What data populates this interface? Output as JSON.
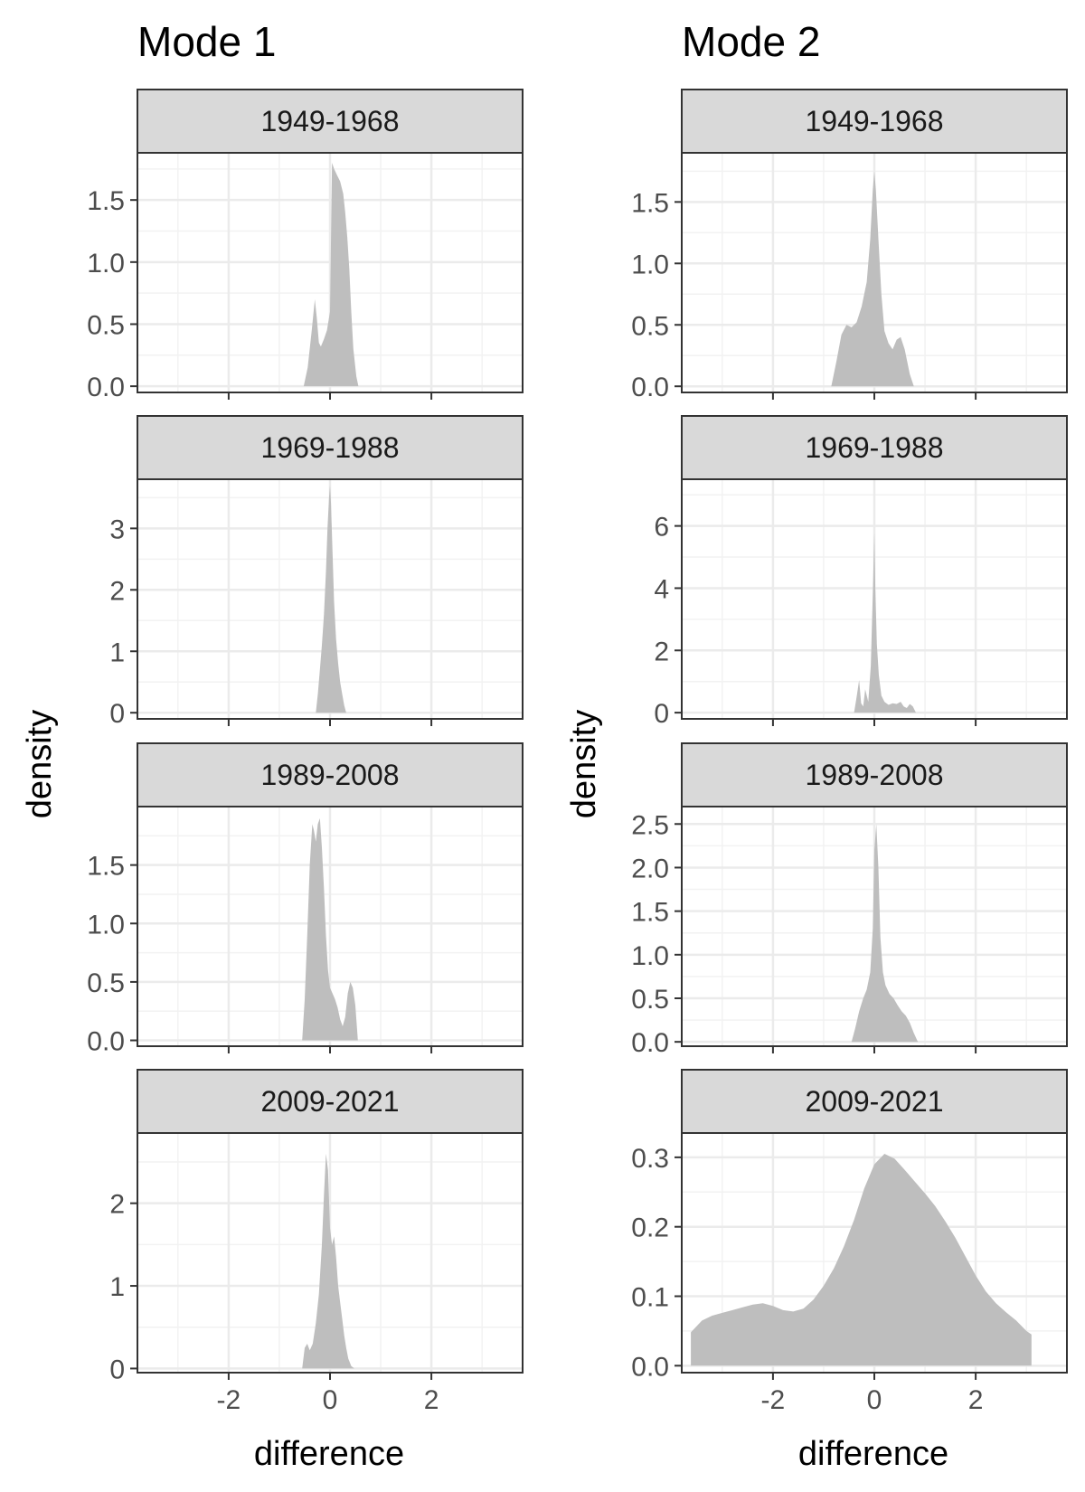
{
  "chart_data": [
    {
      "type": "area",
      "title": "Mode 1",
      "xlabel": "difference",
      "ylabel": "density",
      "xlim": [
        -3.8,
        3.8
      ],
      "xticks": [
        -2,
        0,
        2
      ],
      "xtick_labels": [
        "-2",
        "0",
        "2"
      ],
      "grid": true,
      "fill_color": "#bebebe",
      "panels": [
        {
          "label": "1949-1968",
          "ylim": [
            -0.05,
            1.88
          ],
          "yticks": [
            0,
            0.5,
            1,
            1.5
          ],
          "ytick_labels": [
            "0.0",
            "0.5",
            "1.0",
            "1.5"
          ],
          "x": [
            -0.52,
            -0.44,
            -0.36,
            -0.3,
            -0.26,
            -0.22,
            -0.18,
            -0.12,
            -0.06,
            0.0,
            0.04,
            0.08,
            0.14,
            0.2,
            0.26,
            0.3,
            0.34,
            0.38,
            0.42,
            0.46,
            0.52,
            0.56
          ],
          "y": [
            0.0,
            0.15,
            0.45,
            0.7,
            0.55,
            0.35,
            0.32,
            0.38,
            0.45,
            0.6,
            1.8,
            1.75,
            1.7,
            1.65,
            1.55,
            1.4,
            1.2,
            0.95,
            0.6,
            0.3,
            0.08,
            0.0
          ]
        },
        {
          "label": "1969-1988",
          "ylim": [
            -0.1,
            3.8
          ],
          "yticks": [
            0,
            1,
            2,
            3
          ],
          "ytick_labels": [
            "0",
            "1",
            "2",
            "3"
          ],
          "x": [
            -0.28,
            -0.24,
            -0.2,
            -0.16,
            -0.12,
            -0.08,
            -0.05,
            -0.02,
            0.0,
            0.02,
            0.05,
            0.08,
            0.12,
            0.16,
            0.2,
            0.24,
            0.28,
            0.32
          ],
          "y": [
            0.0,
            0.3,
            0.7,
            1.1,
            1.6,
            2.3,
            3.0,
            3.5,
            3.7,
            3.4,
            2.6,
            1.8,
            1.2,
            0.8,
            0.5,
            0.3,
            0.12,
            0.0
          ]
        },
        {
          "label": "1989-2008",
          "ylim": [
            -0.05,
            2.0
          ],
          "yticks": [
            0,
            0.5,
            1,
            1.5
          ],
          "ytick_labels": [
            "0.0",
            "0.5",
            "1.0",
            "1.5"
          ],
          "x": [
            -0.55,
            -0.5,
            -0.45,
            -0.4,
            -0.35,
            -0.32,
            -0.28,
            -0.24,
            -0.2,
            -0.16,
            -0.12,
            -0.08,
            -0.04,
            0.0,
            0.05,
            0.1,
            0.15,
            0.2,
            0.25,
            0.3,
            0.35,
            0.4,
            0.45,
            0.5,
            0.55
          ],
          "y": [
            0.0,
            0.35,
            0.9,
            1.5,
            1.85,
            1.8,
            1.7,
            1.85,
            1.9,
            1.65,
            1.3,
            0.9,
            0.6,
            0.45,
            0.4,
            0.35,
            0.28,
            0.18,
            0.12,
            0.2,
            0.4,
            0.5,
            0.45,
            0.3,
            0.0
          ]
        },
        {
          "label": "2009-2021",
          "ylim": [
            -0.05,
            2.85
          ],
          "yticks": [
            0,
            1,
            2
          ],
          "ytick_labels": [
            "0",
            "1",
            "2"
          ],
          "x": [
            -0.55,
            -0.5,
            -0.45,
            -0.4,
            -0.34,
            -0.28,
            -0.22,
            -0.16,
            -0.12,
            -0.08,
            -0.04,
            0.0,
            0.04,
            0.08,
            0.12,
            0.16,
            0.2,
            0.24,
            0.28,
            0.32,
            0.36,
            0.42,
            0.48
          ],
          "y": [
            0.0,
            0.25,
            0.3,
            0.22,
            0.3,
            0.55,
            0.9,
            1.5,
            2.1,
            2.6,
            2.4,
            1.7,
            1.5,
            1.6,
            1.35,
            1.0,
            0.8,
            0.6,
            0.4,
            0.25,
            0.12,
            0.03,
            0.0
          ]
        }
      ]
    },
    {
      "type": "area",
      "title": "Mode 2",
      "xlabel": "difference",
      "ylabel": "density",
      "xlim": [
        -3.8,
        3.8
      ],
      "xticks": [
        -2,
        0,
        2
      ],
      "xtick_labels": [
        "-2",
        "0",
        "2"
      ],
      "grid": true,
      "fill_color": "#bebebe",
      "panels": [
        {
          "label": "1949-1968",
          "ylim": [
            -0.05,
            1.9
          ],
          "yticks": [
            0,
            0.5,
            1,
            1.5
          ],
          "ytick_labels": [
            "0.0",
            "0.5",
            "1.0",
            "1.5"
          ],
          "x": [
            -0.85,
            -0.75,
            -0.65,
            -0.55,
            -0.45,
            -0.35,
            -0.25,
            -0.15,
            -0.08,
            -0.03,
            0.0,
            0.03,
            0.08,
            0.14,
            0.2,
            0.28,
            0.36,
            0.44,
            0.52,
            0.6,
            0.7,
            0.78
          ],
          "y": [
            0.0,
            0.2,
            0.42,
            0.5,
            0.48,
            0.52,
            0.65,
            0.85,
            1.2,
            1.6,
            1.75,
            1.6,
            1.2,
            0.75,
            0.45,
            0.35,
            0.3,
            0.38,
            0.4,
            0.3,
            0.1,
            0.0
          ]
        },
        {
          "label": "1969-1988",
          "ylim": [
            -0.2,
            7.5
          ],
          "yticks": [
            0,
            2,
            4,
            6
          ],
          "ytick_labels": [
            "0",
            "2",
            "4",
            "6"
          ],
          "x": [
            -0.4,
            -0.35,
            -0.3,
            -0.26,
            -0.22,
            -0.18,
            -0.12,
            -0.07,
            -0.03,
            0.0,
            0.02,
            0.05,
            0.09,
            0.14,
            0.2,
            0.28,
            0.36,
            0.44,
            0.52,
            0.58,
            0.64,
            0.7,
            0.76,
            0.82
          ],
          "y": [
            0.0,
            0.5,
            1.05,
            0.3,
            0.2,
            0.75,
            0.35,
            1.5,
            3.8,
            5.8,
            4.0,
            2.2,
            1.2,
            0.55,
            0.35,
            0.25,
            0.3,
            0.28,
            0.35,
            0.2,
            0.15,
            0.28,
            0.2,
            0.0
          ]
        },
        {
          "label": "1989-2008",
          "ylim": [
            -0.05,
            2.7
          ],
          "yticks": [
            0,
            0.5,
            1,
            1.5,
            2,
            2.5
          ],
          "ytick_labels": [
            "0.0",
            "0.5",
            "1.0",
            "1.5",
            "2.0",
            "2.5"
          ],
          "x": [
            -0.45,
            -0.38,
            -0.3,
            -0.22,
            -0.15,
            -0.08,
            -0.03,
            0.0,
            0.04,
            0.08,
            0.12,
            0.17,
            0.22,
            0.3,
            0.38,
            0.46,
            0.54,
            0.62,
            0.7,
            0.78,
            0.86
          ],
          "y": [
            0.0,
            0.15,
            0.35,
            0.5,
            0.6,
            0.8,
            1.3,
            2.2,
            2.5,
            2.0,
            1.2,
            0.8,
            0.65,
            0.55,
            0.5,
            0.42,
            0.35,
            0.3,
            0.22,
            0.1,
            0.0
          ]
        },
        {
          "label": "2009-2021",
          "ylim": [
            -0.01,
            0.335
          ],
          "yticks": [
            0,
            0.1,
            0.2,
            0.3
          ],
          "ytick_labels": [
            "0.0",
            "0.1",
            "0.2",
            "0.3"
          ],
          "x": [
            -3.62,
            -3.4,
            -3.2,
            -3.0,
            -2.8,
            -2.6,
            -2.4,
            -2.2,
            -2.0,
            -1.8,
            -1.6,
            -1.4,
            -1.2,
            -1.0,
            -0.8,
            -0.6,
            -0.4,
            -0.2,
            0.0,
            0.2,
            0.4,
            0.6,
            0.8,
            1.0,
            1.2,
            1.4,
            1.6,
            1.8,
            2.0,
            2.2,
            2.4,
            2.6,
            2.8,
            3.0,
            3.1
          ],
          "y": [
            0.048,
            0.065,
            0.072,
            0.076,
            0.08,
            0.084,
            0.088,
            0.09,
            0.086,
            0.08,
            0.078,
            0.082,
            0.095,
            0.115,
            0.14,
            0.172,
            0.21,
            0.255,
            0.29,
            0.305,
            0.298,
            0.282,
            0.265,
            0.248,
            0.23,
            0.208,
            0.184,
            0.157,
            0.13,
            0.107,
            0.09,
            0.077,
            0.065,
            0.05,
            0.045
          ]
        }
      ]
    }
  ]
}
